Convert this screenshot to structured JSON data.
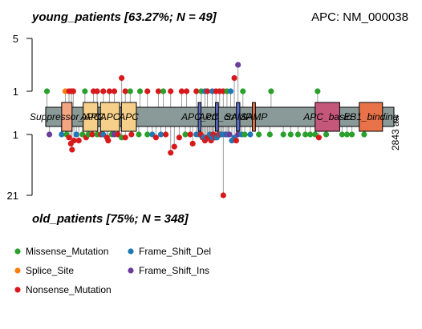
{
  "header": {
    "top_cohort": "young_patients [63.27%; N = 49]",
    "bottom_cohort": "old_patients [75%; N = 348]",
    "gene": "APC: NM_000038"
  },
  "legend": {
    "placement": "bottom-left",
    "items": [
      {
        "label": "Missense_Mutation",
        "color": "#2ca02c"
      },
      {
        "label": "Frame_Shift_Del",
        "color": "#1f78b4"
      },
      {
        "label": "Splice_Site",
        "color": "#ff7f0e"
      },
      {
        "label": "Frame_Shift_Ins",
        "color": "#6a3d9a"
      },
      {
        "label": "Nonsense_Mutation",
        "color": "#d7191c"
      }
    ]
  },
  "chart_data": {
    "type": "lollipop",
    "protein_length": 2843,
    "protein_length_label": "2843 aa",
    "top_axis": {
      "ticks": [
        1,
        5
      ],
      "max": 5
    },
    "bottom_axis": {
      "ticks": [
        1,
        21
      ],
      "max": 21
    },
    "backbone_color": "#8a9a98",
    "domains": [
      {
        "name": "Suppressor_APC",
        "start": 130,
        "end": 215,
        "color": "#f4a582"
      },
      {
        "name": "APC",
        "start": 306,
        "end": 425,
        "color": "#f6d08a"
      },
      {
        "name": "APC",
        "start": 447,
        "end": 603,
        "color": "#f6d08a"
      },
      {
        "name": "APC",
        "start": 618,
        "end": 740,
        "color": "#f6d08a"
      },
      {
        "name": "APC_crr",
        "start": 1245,
        "end": 1268,
        "color": "#5b6ec8"
      },
      {
        "name": "APC_crr",
        "start": 1386,
        "end": 1410,
        "color": "#5b6ec8"
      },
      {
        "name": "SAMP",
        "start": 1557,
        "end": 1585,
        "color": "#5b6ec8"
      },
      {
        "name": "SAMP",
        "start": 1687,
        "end": 1712,
        "color": "#e8734a"
      },
      {
        "name": "APC_basic",
        "start": 2200,
        "end": 2400,
        "color": "#c4577a"
      },
      {
        "name": "EB1_binding",
        "start": 2560,
        "end": 2750,
        "color": "#e8734a"
      }
    ],
    "mutations_top": [
      {
        "pos": 10,
        "count": 1,
        "type": "Missense_Mutation"
      },
      {
        "pos": 160,
        "count": 1,
        "type": "Splice_Site"
      },
      {
        "pos": 190,
        "count": 1,
        "type": "Nonsense_Mutation"
      },
      {
        "pos": 210,
        "count": 1,
        "type": "Nonsense_Mutation"
      },
      {
        "pos": 225,
        "count": 1,
        "type": "Nonsense_Mutation"
      },
      {
        "pos": 320,
        "count": 1,
        "type": "Missense_Mutation"
      },
      {
        "pos": 390,
        "count": 1,
        "type": "Nonsense_Mutation"
      },
      {
        "pos": 420,
        "count": 1,
        "type": "Nonsense_Mutation"
      },
      {
        "pos": 470,
        "count": 1,
        "type": "Nonsense_Mutation"
      },
      {
        "pos": 520,
        "count": 1,
        "type": "Nonsense_Mutation"
      },
      {
        "pos": 560,
        "count": 1,
        "type": "Nonsense_Mutation"
      },
      {
        "pos": 620,
        "count": 2,
        "type": "Nonsense_Mutation"
      },
      {
        "pos": 650,
        "count": 1,
        "type": "Nonsense_Mutation"
      },
      {
        "pos": 690,
        "count": 1,
        "type": "Missense_Mutation"
      },
      {
        "pos": 770,
        "count": 1,
        "type": "Missense_Mutation"
      },
      {
        "pos": 830,
        "count": 1,
        "type": "Nonsense_Mutation"
      },
      {
        "pos": 920,
        "count": 1,
        "type": "Nonsense_Mutation"
      },
      {
        "pos": 960,
        "count": 1,
        "type": "Missense_Mutation"
      },
      {
        "pos": 1020,
        "count": 1,
        "type": "Nonsense_Mutation"
      },
      {
        "pos": 1110,
        "count": 1,
        "type": "Nonsense_Mutation"
      },
      {
        "pos": 1150,
        "count": 1,
        "type": "Nonsense_Mutation"
      },
      {
        "pos": 1230,
        "count": 1,
        "type": "Nonsense_Mutation"
      },
      {
        "pos": 1270,
        "count": 1,
        "type": "Missense_Mutation"
      },
      {
        "pos": 1300,
        "count": 1,
        "type": "Frame_Shift_Del"
      },
      {
        "pos": 1320,
        "count": 1,
        "type": "Nonsense_Mutation"
      },
      {
        "pos": 1360,
        "count": 1,
        "type": "Frame_Shift_Del"
      },
      {
        "pos": 1390,
        "count": 1,
        "type": "Nonsense_Mutation"
      },
      {
        "pos": 1420,
        "count": 1,
        "type": "Nonsense_Mutation"
      },
      {
        "pos": 1450,
        "count": 1,
        "type": "Nonsense_Mutation"
      },
      {
        "pos": 1480,
        "count": 1,
        "type": "Missense_Mutation"
      },
      {
        "pos": 1510,
        "count": 1,
        "type": "Frame_Shift_Del"
      },
      {
        "pos": 1540,
        "count": 2,
        "type": "Nonsense_Mutation"
      },
      {
        "pos": 1570,
        "count": 3,
        "type": "Frame_Shift_Ins"
      },
      {
        "pos": 1610,
        "count": 1,
        "type": "Missense_Mutation"
      },
      {
        "pos": 1840,
        "count": 1,
        "type": "Missense_Mutation"
      },
      {
        "pos": 2220,
        "count": 1,
        "type": "Missense_Mutation"
      }
    ],
    "mutations_bottom": [
      {
        "pos": 30,
        "count": 1,
        "type": "Frame_Shift_Ins"
      },
      {
        "pos": 130,
        "count": 1,
        "type": "Frame_Shift_Del"
      },
      {
        "pos": 170,
        "count": 1,
        "type": "Missense_Mutation"
      },
      {
        "pos": 190,
        "count": 2,
        "type": "Nonsense_Mutation"
      },
      {
        "pos": 205,
        "count": 4,
        "type": "Nonsense_Mutation"
      },
      {
        "pos": 215,
        "count": 6,
        "type": "Nonsense_Mutation"
      },
      {
        "pos": 230,
        "count": 3,
        "type": "Nonsense_Mutation"
      },
      {
        "pos": 250,
        "count": 1,
        "type": "Frame_Shift_Del"
      },
      {
        "pos": 270,
        "count": 3,
        "type": "Nonsense_Mutation"
      },
      {
        "pos": 300,
        "count": 1,
        "type": "Missense_Mutation"
      },
      {
        "pos": 330,
        "count": 2,
        "type": "Nonsense_Mutation"
      },
      {
        "pos": 350,
        "count": 1,
        "type": "Missense_Mutation"
      },
      {
        "pos": 380,
        "count": 1,
        "type": "Nonsense_Mutation"
      },
      {
        "pos": 420,
        "count": 1,
        "type": "Missense_Mutation"
      },
      {
        "pos": 450,
        "count": 1,
        "type": "Nonsense_Mutation"
      },
      {
        "pos": 470,
        "count": 1,
        "type": "Frame_Shift_Del"
      },
      {
        "pos": 500,
        "count": 2,
        "type": "Nonsense_Mutation"
      },
      {
        "pos": 510,
        "count": 3,
        "type": "Nonsense_Mutation"
      },
      {
        "pos": 540,
        "count": 1,
        "type": "Missense_Mutation"
      },
      {
        "pos": 560,
        "count": 1,
        "type": "Frame_Shift_Ins"
      },
      {
        "pos": 590,
        "count": 1,
        "type": "Nonsense_Mutation"
      },
      {
        "pos": 620,
        "count": 2,
        "type": "Missense_Mutation"
      },
      {
        "pos": 650,
        "count": 2,
        "type": "Nonsense_Mutation"
      },
      {
        "pos": 700,
        "count": 1,
        "type": "Nonsense_Mutation"
      },
      {
        "pos": 760,
        "count": 1,
        "type": "Missense_Mutation"
      },
      {
        "pos": 830,
        "count": 1,
        "type": "Missense_Mutation"
      },
      {
        "pos": 870,
        "count": 1,
        "type": "Frame_Shift_Del"
      },
      {
        "pos": 900,
        "count": 2,
        "type": "Nonsense_Mutation"
      },
      {
        "pos": 940,
        "count": 1,
        "type": "Frame_Shift_Del"
      },
      {
        "pos": 980,
        "count": 1,
        "type": "Nonsense_Mutation"
      },
      {
        "pos": 1020,
        "count": 7,
        "type": "Nonsense_Mutation"
      },
      {
        "pos": 1050,
        "count": 5,
        "type": "Nonsense_Mutation"
      },
      {
        "pos": 1090,
        "count": 2,
        "type": "Nonsense_Mutation"
      },
      {
        "pos": 1140,
        "count": 1,
        "type": "Missense_Mutation"
      },
      {
        "pos": 1180,
        "count": 1,
        "type": "Nonsense_Mutation"
      },
      {
        "pos": 1200,
        "count": 4,
        "type": "Nonsense_Mutation"
      },
      {
        "pos": 1230,
        "count": 1,
        "type": "Frame_Shift_Del"
      },
      {
        "pos": 1255,
        "count": 1,
        "type": "Frame_Shift_Del"
      },
      {
        "pos": 1265,
        "count": 1,
        "type": "Nonsense_Mutation"
      },
      {
        "pos": 1280,
        "count": 2,
        "type": "Nonsense_Mutation"
      },
      {
        "pos": 1290,
        "count": 2,
        "type": "Frame_Shift_Del"
      },
      {
        "pos": 1300,
        "count": 3,
        "type": "Nonsense_Mutation"
      },
      {
        "pos": 1310,
        "count": 2,
        "type": "Frame_Shift_Del"
      },
      {
        "pos": 1320,
        "count": 2,
        "type": "Nonsense_Mutation"
      },
      {
        "pos": 1330,
        "count": 2,
        "type": "Nonsense_Mutation"
      },
      {
        "pos": 1340,
        "count": 1,
        "type": "Frame_Shift_Del"
      },
      {
        "pos": 1350,
        "count": 3,
        "type": "Nonsense_Mutation"
      },
      {
        "pos": 1360,
        "count": 2,
        "type": "Frame_Shift_Del"
      },
      {
        "pos": 1367,
        "count": 1,
        "type": "Nonsense_Mutation"
      },
      {
        "pos": 1375,
        "count": 2,
        "type": "Frame_Shift_Del"
      },
      {
        "pos": 1385,
        "count": 2,
        "type": "Nonsense_Mutation"
      },
      {
        "pos": 1398,
        "count": 2,
        "type": "Frame_Shift_Del"
      },
      {
        "pos": 1410,
        "count": 1,
        "type": "Nonsense_Mutation"
      },
      {
        "pos": 1420,
        "count": 1,
        "type": "Frame_Shift_Del"
      },
      {
        "pos": 1430,
        "count": 1,
        "type": "Nonsense_Mutation"
      },
      {
        "pos": 1440,
        "count": 1,
        "type": "Frame_Shift_Del"
      },
      {
        "pos": 1450,
        "count": 21,
        "type": "Nonsense_Mutation"
      },
      {
        "pos": 1465,
        "count": 1,
        "type": "Frame_Shift_Del"
      },
      {
        "pos": 1480,
        "count": 1,
        "type": "Frame_Shift_Ins"
      },
      {
        "pos": 1490,
        "count": 1,
        "type": "Frame_Shift_Del"
      },
      {
        "pos": 1500,
        "count": 1,
        "type": "Frame_Shift_Ins"
      },
      {
        "pos": 1520,
        "count": 3,
        "type": "Frame_Shift_Del"
      },
      {
        "pos": 1540,
        "count": 2,
        "type": "Frame_Shift_Del"
      },
      {
        "pos": 1555,
        "count": 3,
        "type": "Nonsense_Mutation"
      },
      {
        "pos": 1570,
        "count": 1,
        "type": "Frame_Shift_Ins"
      },
      {
        "pos": 1600,
        "count": 1,
        "type": "Frame_Shift_Del"
      },
      {
        "pos": 1625,
        "count": 1,
        "type": "Missense_Mutation"
      },
      {
        "pos": 1670,
        "count": 1,
        "type": "Frame_Shift_Del"
      },
      {
        "pos": 1740,
        "count": 1,
        "type": "Missense_Mutation"
      },
      {
        "pos": 1830,
        "count": 1,
        "type": "Missense_Mutation"
      },
      {
        "pos": 1940,
        "count": 1,
        "type": "Missense_Mutation"
      },
      {
        "pos": 2000,
        "count": 1,
        "type": "Missense_Mutation"
      },
      {
        "pos": 2060,
        "count": 1,
        "type": "Missense_Mutation"
      },
      {
        "pos": 2120,
        "count": 1,
        "type": "Missense_Mutation"
      },
      {
        "pos": 2160,
        "count": 1,
        "type": "Missense_Mutation"
      },
      {
        "pos": 2200,
        "count": 1,
        "type": "Missense_Mutation"
      },
      {
        "pos": 2230,
        "count": 2,
        "type": "Nonsense_Mutation"
      },
      {
        "pos": 2290,
        "count": 1,
        "type": "Missense_Mutation"
      },
      {
        "pos": 2420,
        "count": 1,
        "type": "Missense_Mutation"
      },
      {
        "pos": 2460,
        "count": 1,
        "type": "Missense_Mutation"
      },
      {
        "pos": 2500,
        "count": 1,
        "type": "Missense_Mutation"
      },
      {
        "pos": 2600,
        "count": 1,
        "type": "Missense_Mutation"
      }
    ]
  }
}
